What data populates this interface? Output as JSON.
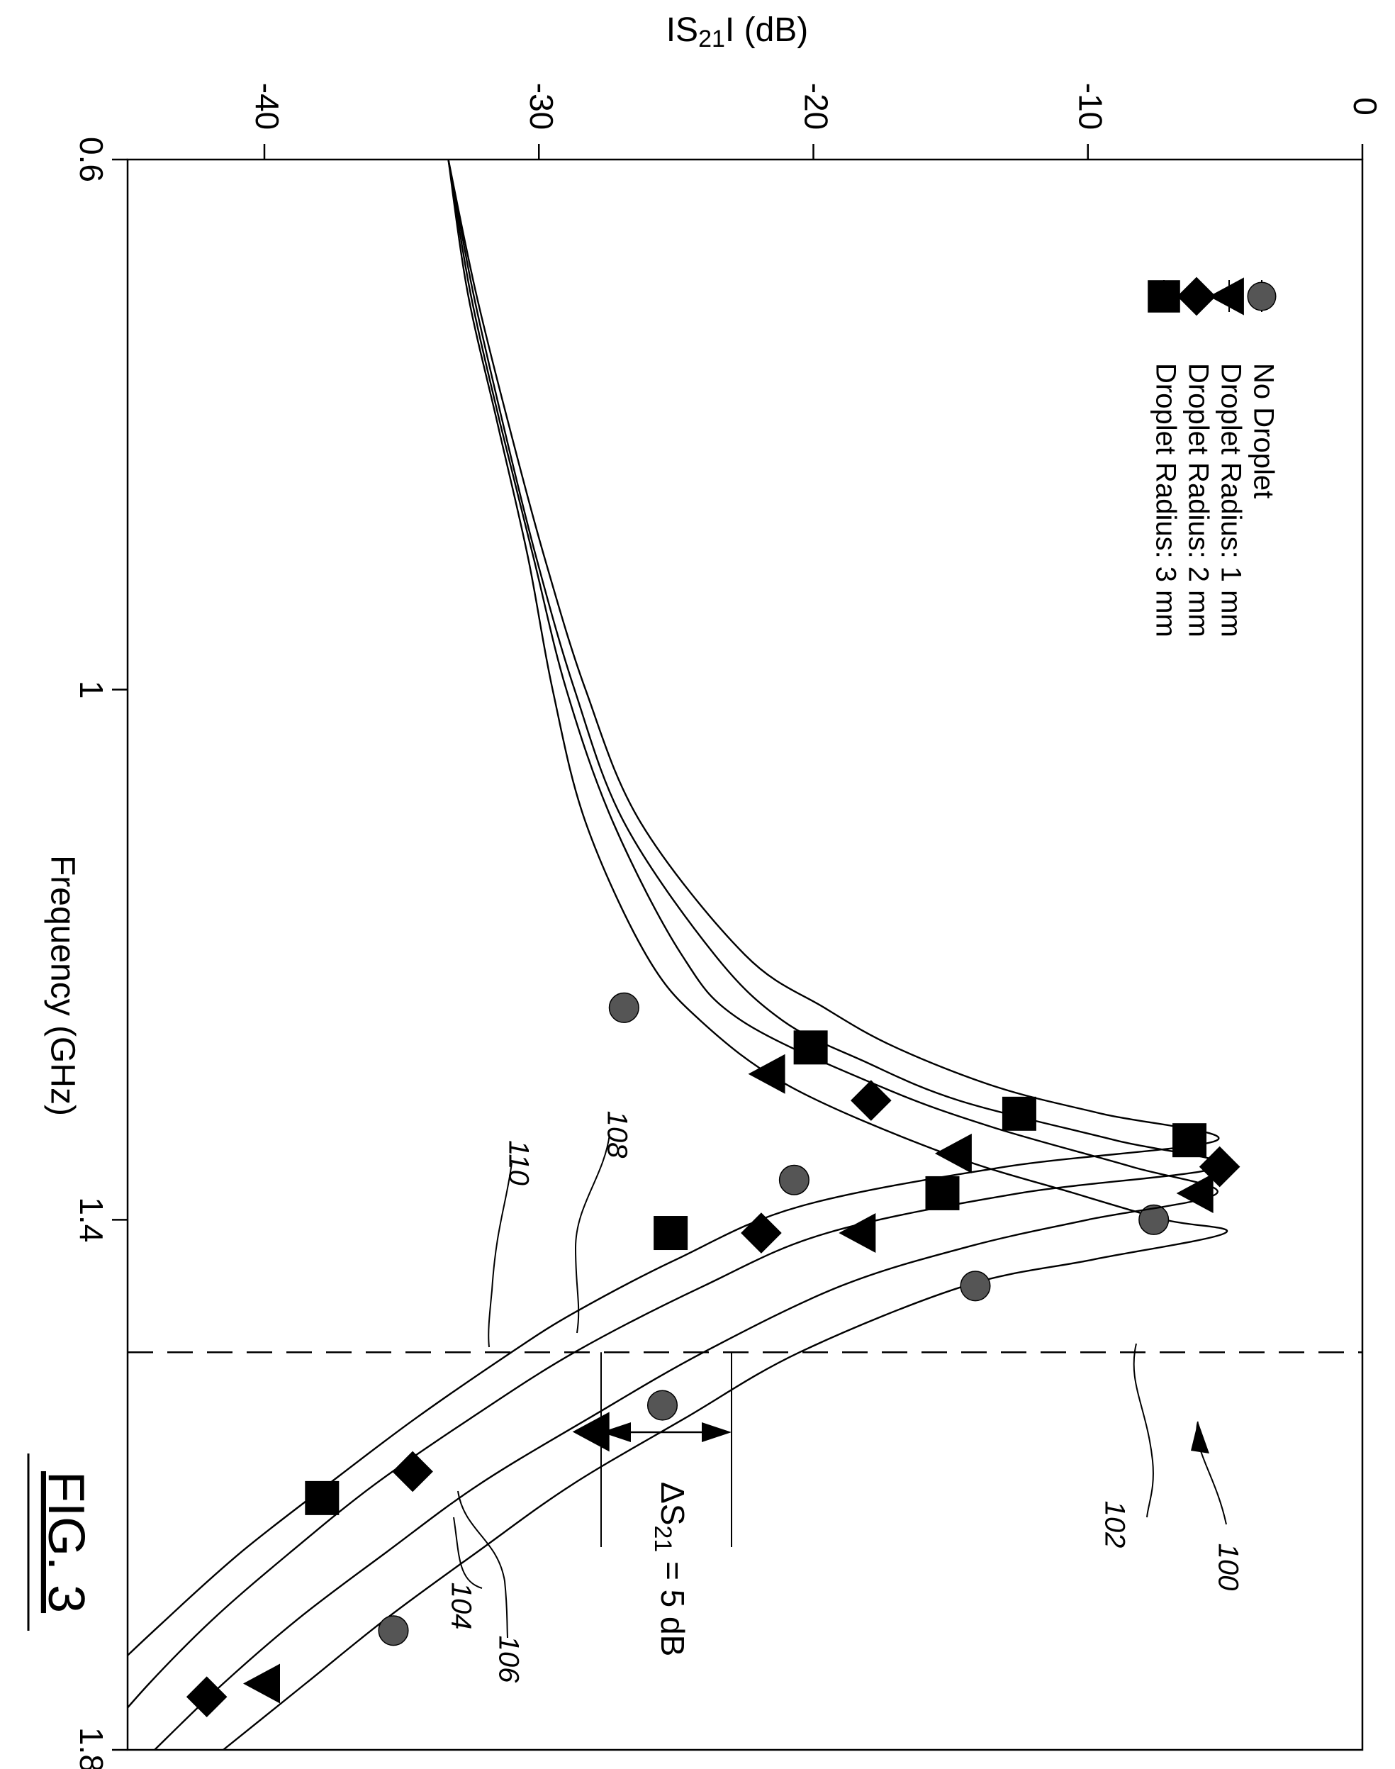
{
  "figure": {
    "caption": "FIG. 3",
    "ref_figure": "100",
    "ref_threshold": "102",
    "delta_label": "ΔS",
    "delta_sub": "21",
    "delta_value": " = 5 dB"
  },
  "chart_data": {
    "type": "line",
    "orientation": "rotated 90° clockwise (frequency runs top-to-bottom, |S21| runs left-to-right)",
    "xlabel": "Frequency (GHz)",
    "ylabel": "|S21| (dB)",
    "ylabel_parts": {
      "pre": "IS",
      "sub": "21",
      "post": "I (dB)"
    },
    "xlim": [
      0.6,
      1.8
    ],
    "ylim": [
      -45,
      0
    ],
    "x_ticks": [
      "0.6",
      "1",
      "1.4",
      "1.8"
    ],
    "y_ticks": [
      "-40",
      "-30",
      "-20",
      "-10",
      "0"
    ],
    "grid": false,
    "legend_position": "top-right",
    "threshold_frequency": 1.5,
    "delta_s21_db": 5,
    "series": [
      {
        "name": "No Droplet",
        "ref": "104",
        "marker": "circle",
        "marker_color": "#555555",
        "f0": 1.41,
        "peak_db": -4.8,
        "x": [
          0.6,
          0.7,
          0.8,
          0.9,
          1.0,
          1.1,
          1.2,
          1.25,
          1.3,
          1.35,
          1.38,
          1.4,
          1.41,
          1.43,
          1.45,
          1.5,
          1.55,
          1.6,
          1.65,
          1.7,
          1.75,
          1.8
        ],
        "y": [
          -33.3,
          -32.6,
          -31.5,
          -30.4,
          -29.5,
          -28.3,
          -26.1,
          -24.1,
          -20.8,
          -15.2,
          -10.5,
          -7.2,
          -5.0,
          -9.8,
          -14.5,
          -20.5,
          -24.7,
          -28.8,
          -32.2,
          -35.5,
          -38.5,
          -41.5
        ],
        "markers_x": [
          1.24,
          1.37,
          1.4,
          1.45,
          1.54,
          1.71
        ],
        "markers_y": [
          -26.9,
          -20.7,
          -7.6,
          -14.1,
          -25.5,
          -35.3
        ]
      },
      {
        "name": "Droplet Radius: 1 mm",
        "ref": "106",
        "marker": "triangle",
        "marker_color": "#000000",
        "f0": 1.38,
        "peak_db": -5.2,
        "x": [
          0.6,
          0.7,
          0.8,
          0.9,
          1.0,
          1.1,
          1.2,
          1.25,
          1.3,
          1.33,
          1.36,
          1.38,
          1.4,
          1.42,
          1.45,
          1.5,
          1.55,
          1.6,
          1.65,
          1.7,
          1.75,
          1.8
        ],
        "y": [
          -33.3,
          -32.5,
          -31.4,
          -30.2,
          -29.0,
          -27.3,
          -24.8,
          -22.6,
          -17.5,
          -13.5,
          -8.4,
          -5.3,
          -10.0,
          -14.3,
          -19.0,
          -24.0,
          -28.2,
          -32.2,
          -35.5,
          -38.7,
          -41.5,
          -44.0
        ],
        "markers_x": [
          1.29,
          1.35,
          1.38,
          1.41,
          1.56,
          1.75
        ],
        "markers_y": [
          -21.6,
          -14.8,
          -6.0,
          -18.3,
          -28.0,
          -40.0
        ]
      },
      {
        "name": "Droplet Radius: 2 mm",
        "ref": "108",
        "marker": "diamond",
        "marker_color": "#000000",
        "f0": 1.36,
        "peak_db": -5.0,
        "x": [
          0.6,
          0.7,
          0.8,
          0.9,
          1.0,
          1.1,
          1.2,
          1.25,
          1.28,
          1.31,
          1.34,
          1.36,
          1.38,
          1.41,
          1.45,
          1.5,
          1.55,
          1.6,
          1.65,
          1.7,
          1.75,
          1.8
        ],
        "y": [
          -33.3,
          -32.4,
          -31.3,
          -30.1,
          -28.7,
          -26.9,
          -23.6,
          -21.1,
          -18.2,
          -14.7,
          -9.0,
          -5.2,
          -12.5,
          -19.5,
          -24.0,
          -28.7,
          -32.5,
          -36.0,
          -39.0,
          -41.8,
          -44.2,
          -46.3
        ],
        "markers_x": [
          1.31,
          1.36,
          1.41,
          1.59,
          1.76
        ],
        "markers_y": [
          -17.9,
          -5.2,
          -21.9,
          -34.6,
          -42.1
        ]
      },
      {
        "name": "Droplet Radius: 3 mm",
        "ref": "110",
        "marker": "square",
        "marker_color": "#000000",
        "f0": 1.34,
        "peak_db": -5.1,
        "x": [
          0.6,
          0.7,
          0.8,
          0.9,
          1.0,
          1.1,
          1.2,
          1.24,
          1.27,
          1.3,
          1.32,
          1.34,
          1.36,
          1.39,
          1.43,
          1.47,
          1.5,
          1.55,
          1.6,
          1.65,
          1.7,
          1.75,
          1.8
        ],
        "y": [
          -33.3,
          -32.3,
          -31.1,
          -29.8,
          -28.3,
          -26.3,
          -22.5,
          -19.6,
          -17.0,
          -13.3,
          -9.5,
          -5.3,
          -13.0,
          -20.5,
          -25.0,
          -28.7,
          -31.0,
          -34.5,
          -37.7,
          -40.8,
          -43.5,
          -46.0,
          -48.0
        ],
        "markers_x": [
          1.27,
          1.32,
          1.34,
          1.38,
          1.41,
          1.61
        ],
        "markers_y": [
          -20.1,
          -12.5,
          -6.3,
          -15.3,
          -25.2,
          -37.9
        ]
      }
    ]
  }
}
